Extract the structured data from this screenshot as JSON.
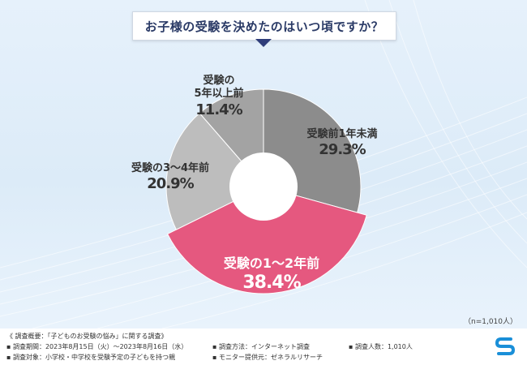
{
  "title": "お子様の受験を決めたのはいつ頃ですか？",
  "chart_data": {
    "type": "pie",
    "donut": true,
    "categories": [
      "受験前1年未満",
      "受験の1〜2年前",
      "受験の3〜4年前",
      "受験の5年以上前"
    ],
    "values": [
      29.3,
      38.4,
      20.9,
      11.4
    ],
    "value_labels": [
      "29.3%",
      "38.4%",
      "20.9%",
      "11.4%"
    ],
    "colors": [
      "#8c8c8c",
      "#e5587f",
      "#bdbdbd",
      "#a3a3a3"
    ],
    "start_angle_deg": 0,
    "direction": "clockwise"
  },
  "labels": {
    "s1_name": "受験前1年未満",
    "s1_val": "29.3%",
    "s2_name": "受験の1〜2年前",
    "s2_val": "38.4%",
    "s3_name": "受験の3〜4年前",
    "s3_val": "20.9%",
    "s4_name_line1": "受験の",
    "s4_name_line2": "5年以上前",
    "s4_val": "11.4%"
  },
  "sample_note": "（n=1,010人）",
  "footer": {
    "outline": "《 調査概要：「子どものお受験の悩み」に関する調査》",
    "period": "▪ 調査期間：2023年8月15日（火）〜2023年8月16日（水）",
    "method": "▪ 調査方法：インターネット調査",
    "count": "▪ 調査人数：1,010人",
    "target": "▪ 調査対象：小学校・中学校を受験予定の子どもを持つ親",
    "provider": "▪ モニター提供元：ゼネラルリサーチ"
  },
  "logo_icon": "logo-s-icon"
}
